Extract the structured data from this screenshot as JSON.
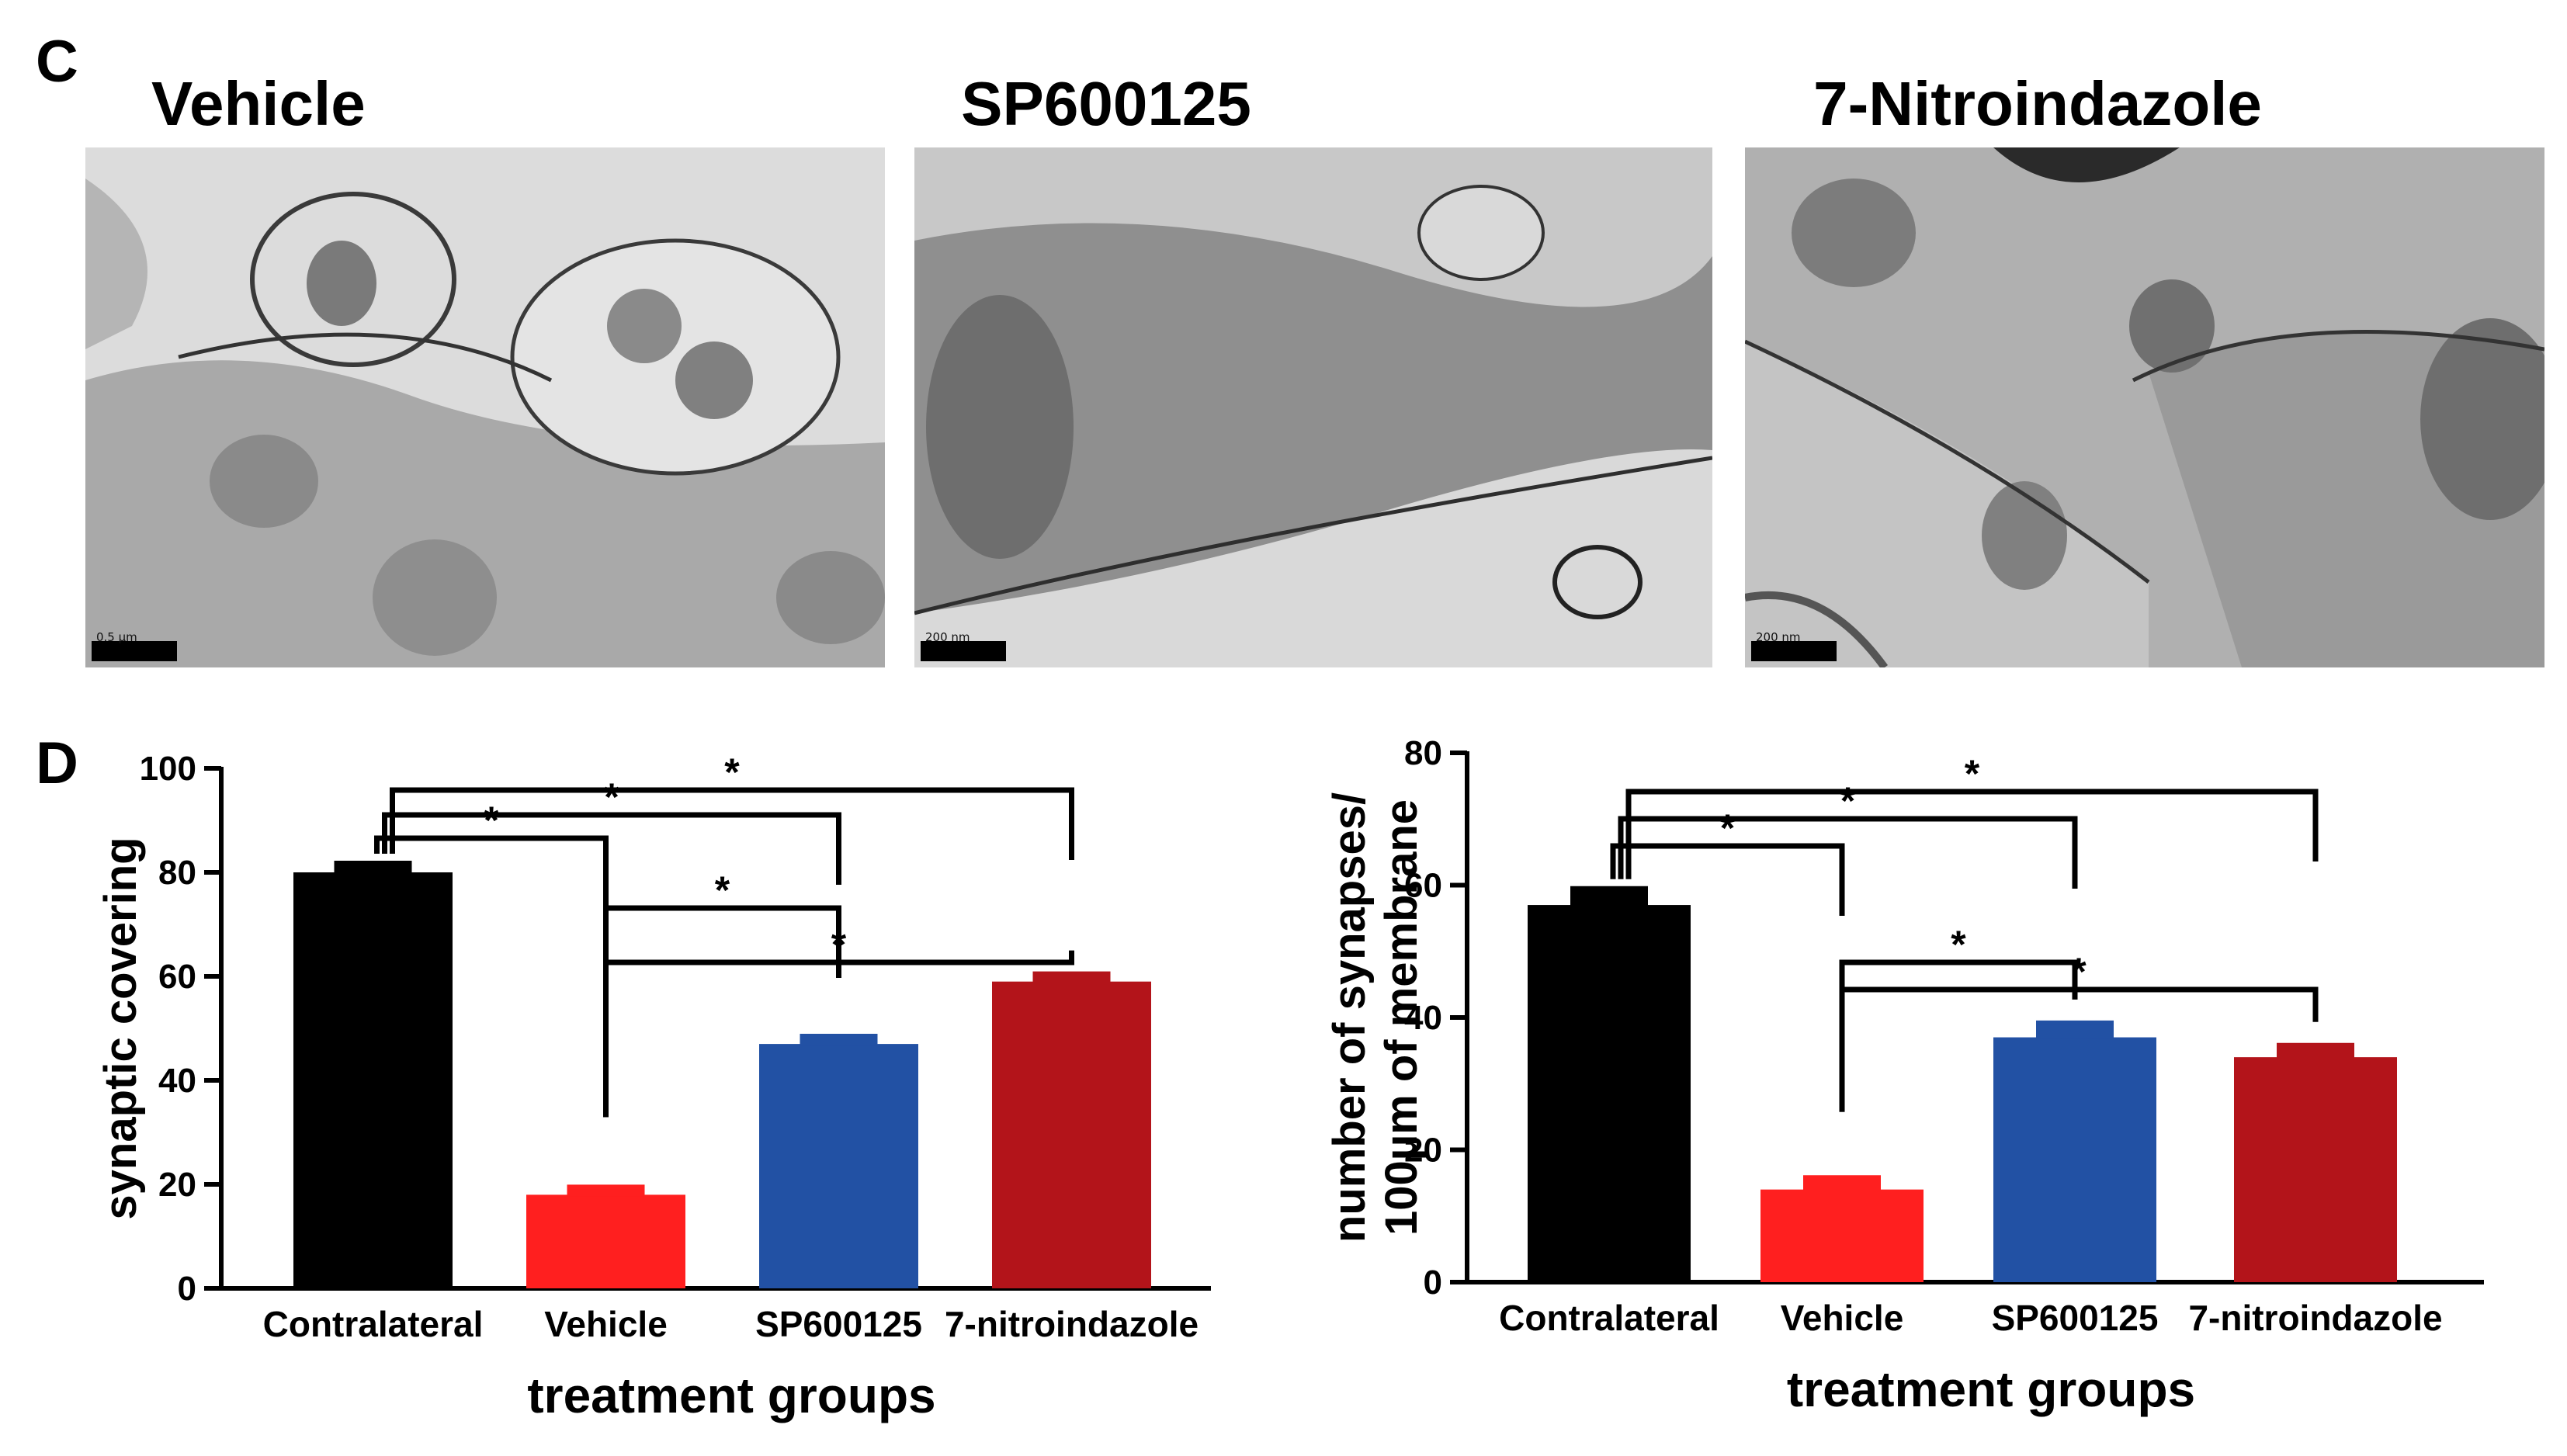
{
  "panels": {
    "c_letter": "C",
    "d_letter": "D"
  },
  "micrographs": [
    {
      "title": "Vehicle",
      "scale": "0.5 µm",
      "shade": "#c4c4c4"
    },
    {
      "title": "SP600125",
      "scale": "200 nm",
      "shade": "#b2b2b2"
    },
    {
      "title": "7-Nitroindazole",
      "scale": "200 nm",
      "shade": "#a8a8a8"
    }
  ],
  "chart_data": [
    {
      "type": "bar",
      "categories": [
        "Contralateral",
        "Vehicle",
        "SP600125",
        "7-nitroindazole"
      ],
      "values": [
        80,
        18,
        47,
        59
      ],
      "errors": [
        1.8,
        1.5,
        1.5,
        1.5
      ],
      "colors": [
        "#000000",
        "#ff1f1f",
        "#2251a4",
        "#b3141a"
      ],
      "xlabel": "treatment groups",
      "ylabel": "synaptic covering",
      "ylim": [
        0,
        100
      ],
      "yticks": [
        0,
        20,
        40,
        60,
        80,
        100
      ],
      "significance": [
        {
          "from": 0,
          "to": 1,
          "label": "*"
        },
        {
          "from": 0,
          "to": 2,
          "label": "*"
        },
        {
          "from": 0,
          "to": 3,
          "label": "*"
        },
        {
          "from": 1,
          "to": 2,
          "label": "*"
        },
        {
          "from": 1,
          "to": 3,
          "label": "*"
        }
      ]
    },
    {
      "type": "bar",
      "categories": [
        "Contralateral",
        "Vehicle",
        "SP600125",
        "7-nitroindazole"
      ],
      "values": [
        57,
        14,
        37,
        34
      ],
      "errors": [
        2.5,
        1.8,
        2.2,
        1.8
      ],
      "colors": [
        "#000000",
        "#ff1f1f",
        "#2251a4",
        "#b3141a"
      ],
      "xlabel": "treatment groups",
      "ylabel": [
        "number of synapses/",
        "100µm of membrane"
      ],
      "ylim": [
        0,
        80
      ],
      "yticks": [
        0,
        20,
        40,
        60,
        80
      ],
      "significance": [
        {
          "from": 0,
          "to": 1,
          "label": "*"
        },
        {
          "from": 0,
          "to": 2,
          "label": "*"
        },
        {
          "from": 0,
          "to": 3,
          "label": "*"
        },
        {
          "from": 1,
          "to": 2,
          "label": "*"
        },
        {
          "from": 1,
          "to": 3,
          "label": "*"
        }
      ]
    }
  ]
}
